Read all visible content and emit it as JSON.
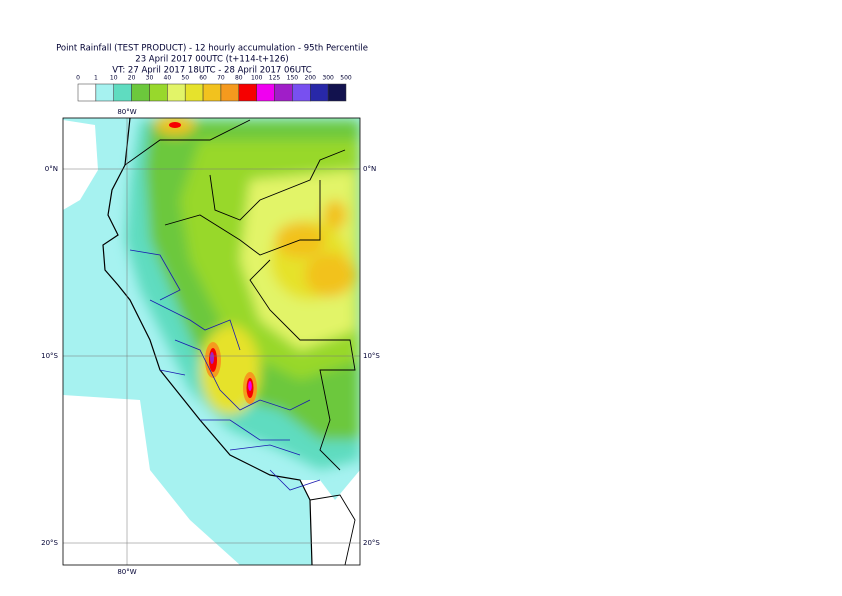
{
  "header": {
    "title": "Point Rainfall (TEST PRODUCT) - 12 hourly accumulation - 95th Percentile",
    "subtitle": "23 April 2017 00UTC (t+114-t+126)",
    "validity": "VT: 27 April 2017 18UTC - 28 April 2017 06UTC"
  },
  "colorbar": {
    "labels": [
      "0",
      "1",
      "10",
      "20",
      "30",
      "40",
      "50",
      "60",
      "70",
      "80",
      "100",
      "125",
      "150",
      "200",
      "300",
      "500"
    ],
    "colors": [
      "#ffffff",
      "#a6f2f0",
      "#5fdcc0",
      "#6cc83c",
      "#98d82c",
      "#e2f468",
      "#e6e22c",
      "#f2c21e",
      "#f59a1e",
      "#f60000",
      "#f000f0",
      "#a01ec8",
      "#7850f0",
      "#2828a8",
      "#12124e"
    ]
  },
  "map": {
    "lon_top": "80°W",
    "lon_bottom": "80°W",
    "lat_left": [
      "0°N",
      "10°S",
      "20°S"
    ],
    "lat_right": [
      "0°N",
      "10°S",
      "20°S"
    ]
  }
}
